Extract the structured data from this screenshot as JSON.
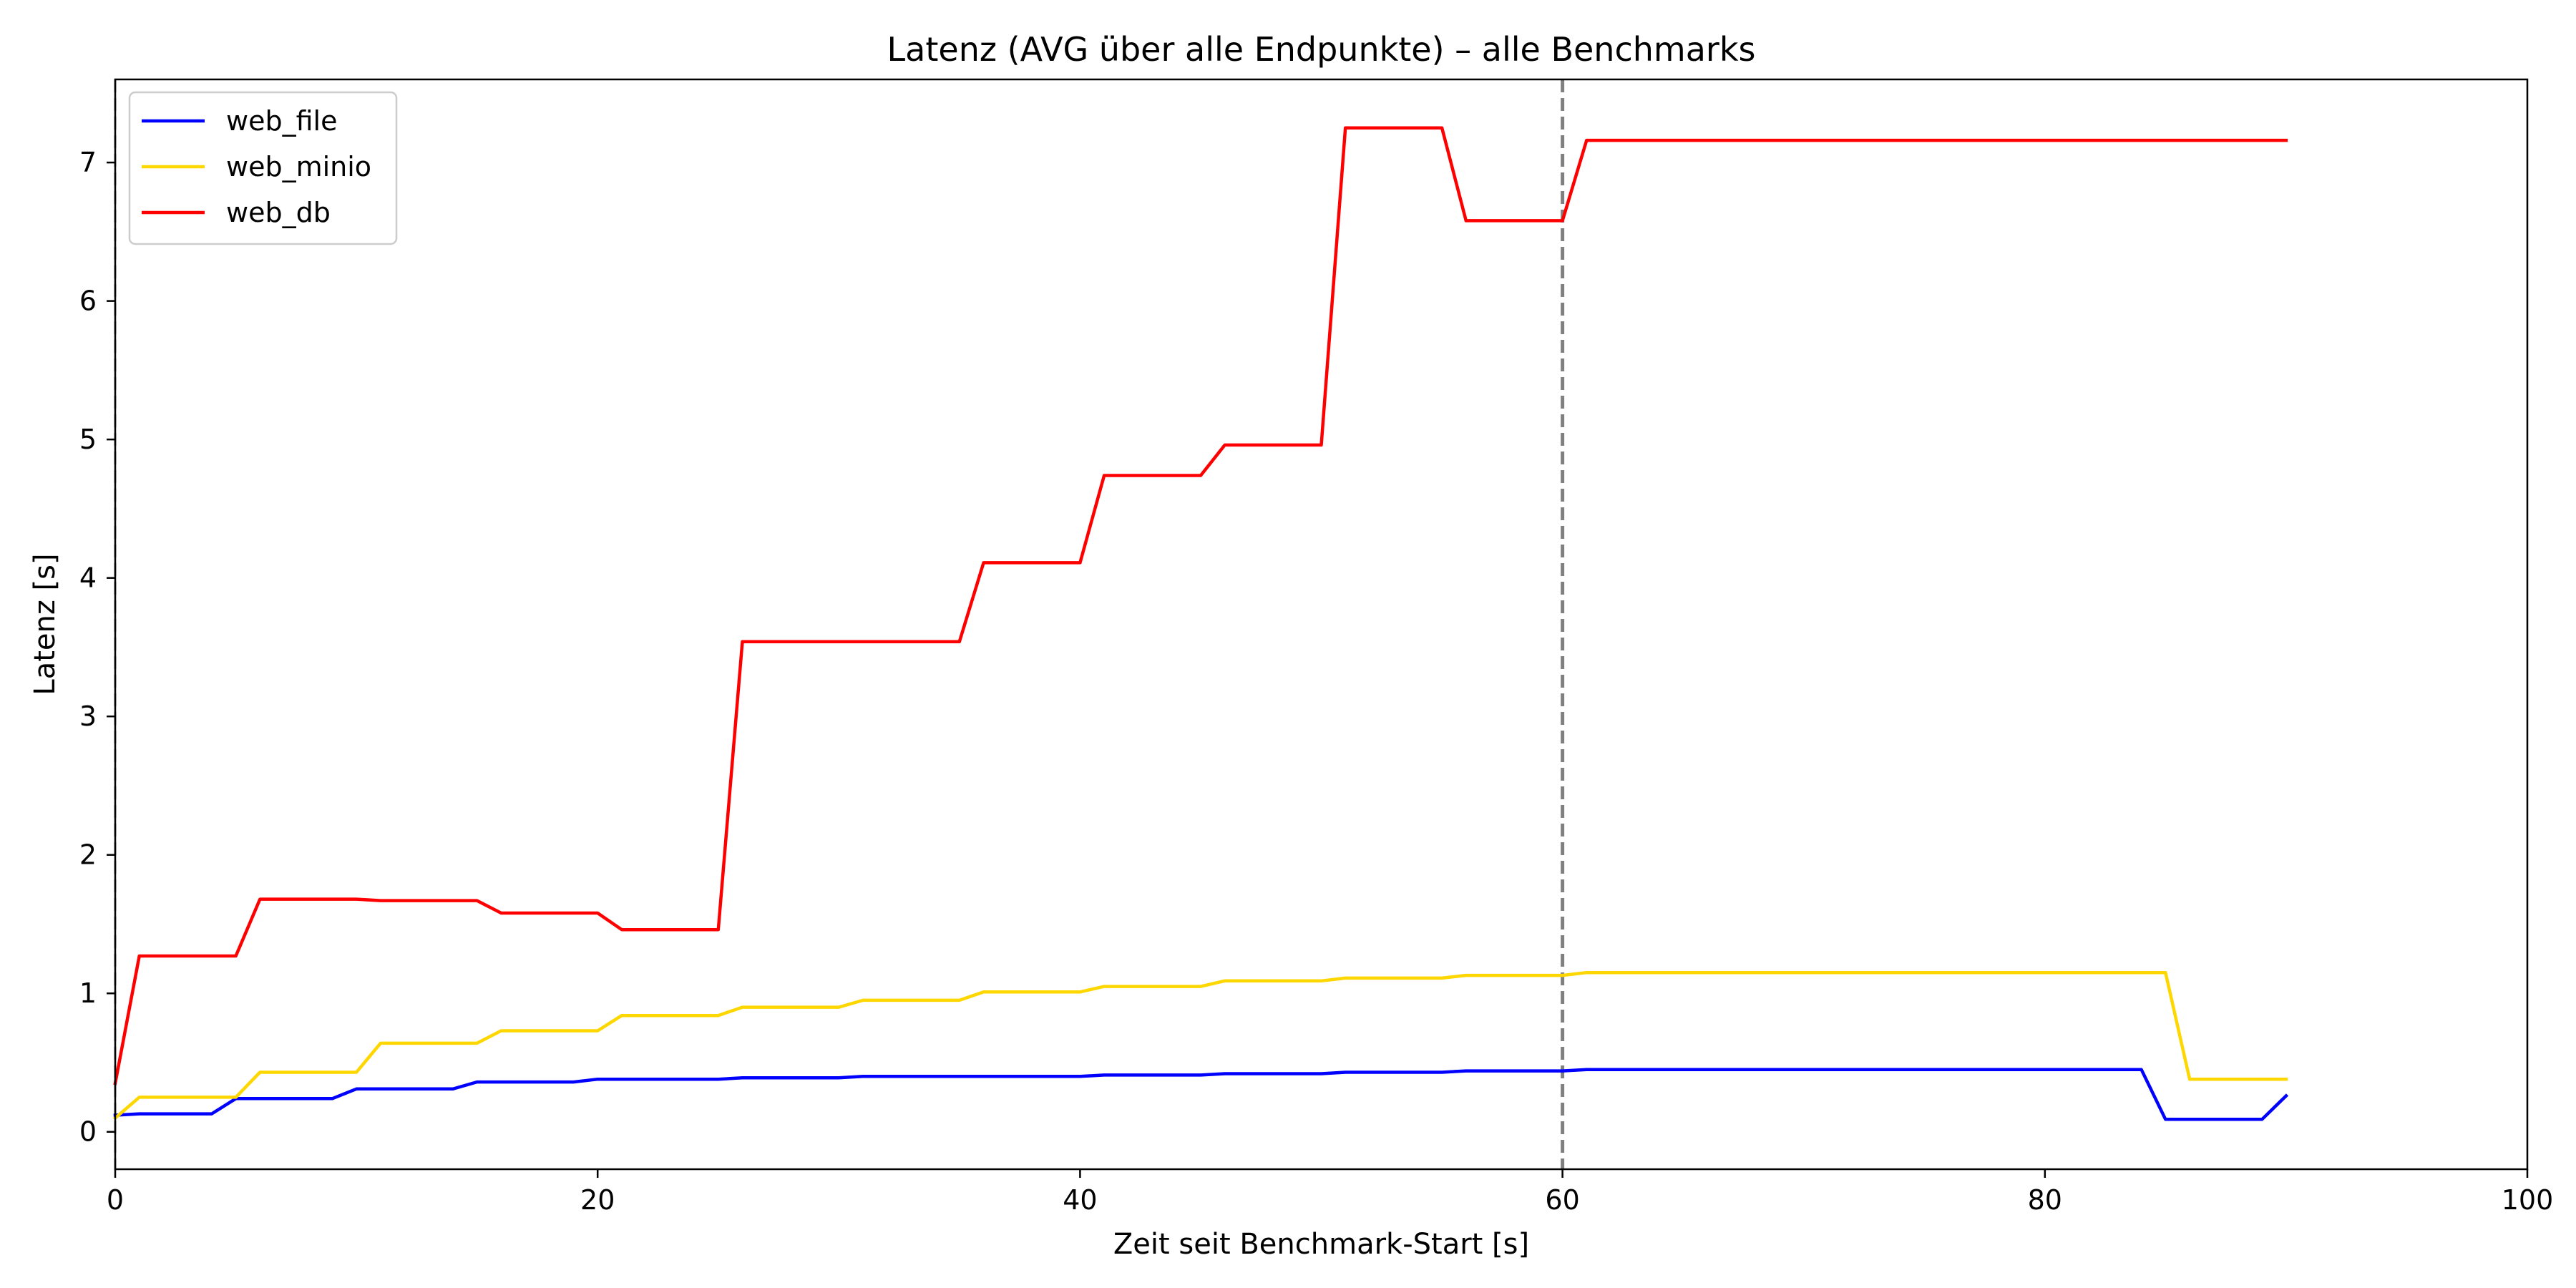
{
  "chart_data": {
    "type": "line",
    "title": "Latenz (AVG über alle Endpunkte) – alle Benchmarks",
    "xlabel": "Zeit seit Benchmark-Start [s]",
    "ylabel": "Latenz [s]",
    "xlim": [
      0,
      100
    ],
    "ylim": [
      -0.27,
      7.6
    ],
    "x_ticks": [
      0,
      20,
      40,
      60,
      80,
      100
    ],
    "y_ticks": [
      0,
      1,
      2,
      3,
      4,
      5,
      6,
      7
    ],
    "grid": false,
    "legend_position": "upper left",
    "vertical_lines": [
      {
        "x": 60,
        "style": "dashed",
        "color": "#808080"
      },
      {
        "x": 0,
        "style": "dashed",
        "color": "#808080"
      }
    ],
    "series": [
      {
        "name": "web_file",
        "color": "#0000ff",
        "x": [
          0,
          1,
          4,
          5,
          9,
          10,
          14,
          15,
          19,
          20,
          25,
          26,
          30,
          31,
          35,
          36,
          40,
          41,
          45,
          46,
          50,
          51,
          55,
          56,
          60,
          61,
          84,
          85,
          89,
          90
        ],
        "y": [
          0.12,
          0.13,
          0.13,
          0.24,
          0.24,
          0.31,
          0.31,
          0.36,
          0.36,
          0.38,
          0.38,
          0.39,
          0.39,
          0.4,
          0.4,
          0.4,
          0.4,
          0.41,
          0.41,
          0.42,
          0.42,
          0.43,
          0.43,
          0.44,
          0.44,
          0.45,
          0.45,
          0.09,
          0.09,
          0.26
        ]
      },
      {
        "name": "web_minio",
        "color": "#ffd700",
        "x": [
          0,
          1,
          5,
          6,
          10,
          11,
          15,
          16,
          20,
          21,
          25,
          26,
          30,
          31,
          35,
          36,
          40,
          41,
          45,
          46,
          50,
          51,
          55,
          56,
          60,
          61,
          85,
          86,
          90
        ],
        "y": [
          0.1,
          0.25,
          0.25,
          0.43,
          0.43,
          0.64,
          0.64,
          0.73,
          0.73,
          0.84,
          0.84,
          0.9,
          0.9,
          0.95,
          0.95,
          1.01,
          1.01,
          1.05,
          1.05,
          1.09,
          1.09,
          1.11,
          1.11,
          1.13,
          1.13,
          1.15,
          1.15,
          0.38,
          0.38
        ]
      },
      {
        "name": "web_db",
        "color": "#ff0000",
        "x": [
          0,
          1,
          5,
          6,
          10,
          11,
          15,
          16,
          20,
          21,
          25,
          26,
          35,
          36,
          40,
          41,
          45,
          46,
          50,
          51,
          55,
          56,
          60,
          61,
          90
        ],
        "y": [
          0.35,
          1.27,
          1.27,
          1.68,
          1.68,
          1.67,
          1.67,
          1.58,
          1.58,
          1.46,
          1.46,
          3.54,
          3.54,
          4.11,
          4.11,
          4.74,
          4.74,
          4.96,
          4.96,
          7.25,
          7.25,
          6.58,
          6.58,
          7.16,
          7.16
        ]
      }
    ]
  }
}
